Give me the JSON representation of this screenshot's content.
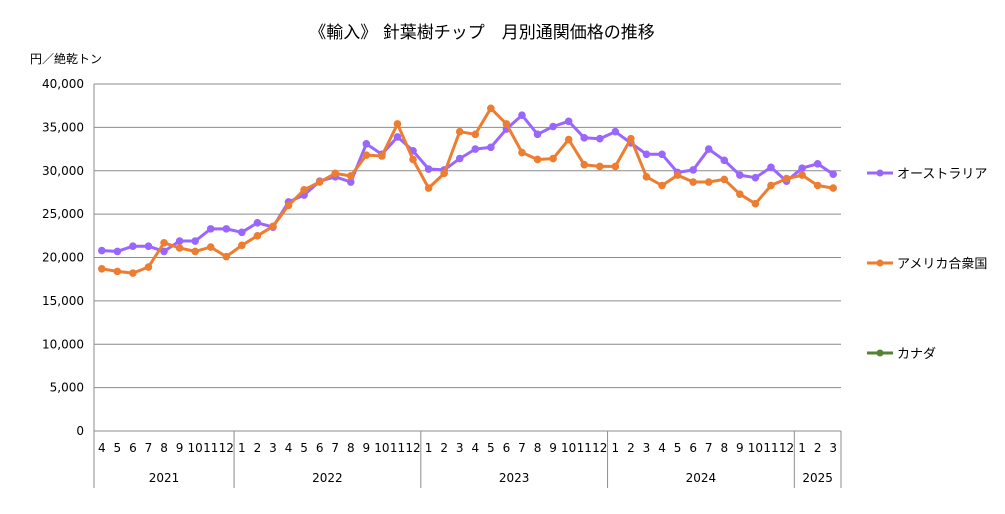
{
  "chart_data": {
    "type": "line",
    "title": "《輸入》 針葉樹チップ　月別通関価格の推移",
    "y_unit_label": "円／絶乾トン",
    "ylim": [
      0,
      40000
    ],
    "y_ticks": [
      "0",
      "5,000",
      "10,000",
      "15,000",
      "20,000",
      "25,000",
      "30,000",
      "35,000",
      "40,000"
    ],
    "y_tick_values": [
      0,
      5000,
      10000,
      15000,
      20000,
      25000,
      30000,
      35000,
      40000
    ],
    "grid": true,
    "legend_position": "right",
    "months": [
      "4",
      "5",
      "6",
      "7",
      "8",
      "9",
      "10",
      "11",
      "12",
      "1",
      "2",
      "3",
      "4",
      "5",
      "6",
      "7",
      "8",
      "9",
      "10",
      "11",
      "12",
      "1",
      "2",
      "3",
      "4",
      "5",
      "6",
      "7",
      "8",
      "9",
      "10",
      "11",
      "12",
      "1",
      "2",
      "3",
      "4",
      "5",
      "6",
      "7",
      "8",
      "9",
      "10",
      "11",
      "12",
      "1",
      "2",
      "3"
    ],
    "years": [
      {
        "label": "2021",
        "count": 9
      },
      {
        "label": "2022",
        "count": 12
      },
      {
        "label": "2023",
        "count": 12
      },
      {
        "label": "2024",
        "count": 12
      },
      {
        "label": "2025",
        "count": 3
      }
    ],
    "series": [
      {
        "name": "オーストラリア",
        "color": "#9966ff",
        "values": [
          20800,
          20700,
          21300,
          21300,
          20700,
          21900,
          21900,
          23300,
          23300,
          22900,
          24000,
          23500,
          26400,
          27200,
          28800,
          29300,
          28700,
          33100,
          31900,
          33900,
          32300,
          30200,
          30100,
          31400,
          32500,
          32700,
          34800,
          36400,
          34200,
          35100,
          35700,
          33800,
          33700,
          34500,
          33200,
          31900,
          31900,
          29800,
          30100,
          32500,
          31200,
          29500,
          29200,
          30400,
          28800,
          30300,
          30800,
          29600
        ]
      },
      {
        "name": "アメリカ合衆国",
        "color": "#ed7d31",
        "values": [
          18700,
          18400,
          18200,
          18900,
          21700,
          21100,
          20700,
          21200,
          20100,
          21400,
          22500,
          23600,
          26000,
          27800,
          28700,
          29700,
          29400,
          31800,
          31700,
          35400,
          31300,
          28000,
          29700,
          34500,
          34200,
          37200,
          35400,
          32100,
          31300,
          31400,
          33600,
          30700,
          30500,
          30500,
          33700,
          29300,
          28300,
          29500,
          28700,
          28700,
          29000,
          27300,
          26200,
          28300,
          29100,
          29500,
          28300,
          28000
        ]
      },
      {
        "name": "カナダ",
        "color": "#548235",
        "values": []
      }
    ]
  }
}
